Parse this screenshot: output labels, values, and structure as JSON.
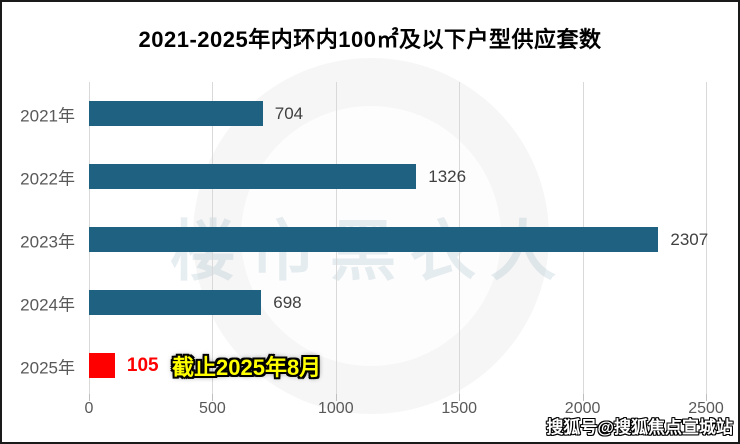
{
  "chart_data": {
    "type": "bar",
    "orientation": "horizontal",
    "title": "2021-2025年内环内100㎡及以下户型供应套数",
    "categories": [
      "2021年",
      "2022年",
      "2023年",
      "2024年",
      "2025年"
    ],
    "values": [
      704,
      1326,
      2307,
      698,
      105
    ],
    "bar_colors": [
      "#1E6180",
      "#1E6180",
      "#1E6180",
      "#1E6180",
      "#FF0000"
    ],
    "value_label_colors": [
      "#404040",
      "#404040",
      "#404040",
      "#404040",
      "#FF0000"
    ],
    "value_label_bold": [
      false,
      false,
      false,
      false,
      true
    ],
    "xlabel": "",
    "ylabel": "",
    "xlim": [
      0,
      2500
    ],
    "x_ticks": [
      "0",
      "500",
      "1000",
      "1500",
      "2000",
      "2500"
    ],
    "grid": true,
    "legend": "none",
    "annotation": "截止2025年8月",
    "annotation_color": "#FFFF00"
  },
  "watermark": {
    "center_text": "楼市黑衣人",
    "bottom_right_text": "搜狐号@搜狐焦点宣城站"
  },
  "colors": {
    "bar_teal": "#1E6180",
    "bar_red": "#FF0000",
    "grid": "#D9D9D9",
    "axis_text": "#595959",
    "value_text": "#404040",
    "annotation_yellow": "#FFFF00",
    "frame_border": "#1A1A1A",
    "background": "#FFFFFF"
  }
}
